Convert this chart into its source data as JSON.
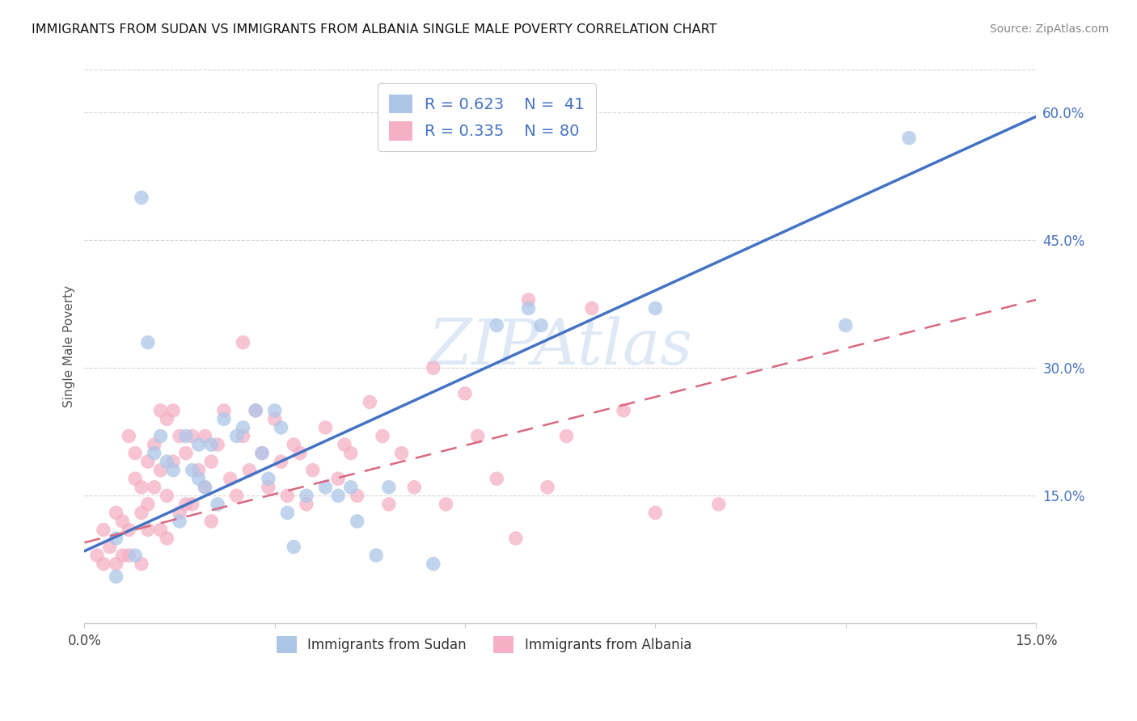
{
  "title": "IMMIGRANTS FROM SUDAN VS IMMIGRANTS FROM ALBANIA SINGLE MALE POVERTY CORRELATION CHART",
  "source": "Source: ZipAtlas.com",
  "ylabel": "Single Male Poverty",
  "xlim": [
    0.0,
    0.15
  ],
  "ylim": [
    0.0,
    0.65
  ],
  "ytick_values_right": [
    0.15,
    0.3,
    0.45,
    0.6
  ],
  "legend_sudan_R": "0.623",
  "legend_sudan_N": "41",
  "legend_albania_R": "0.335",
  "legend_albania_N": "80",
  "watermark": "ZIPAtlas",
  "color_sudan": "#adc6e8",
  "color_albania": "#f5b0c5",
  "color_line_sudan": "#4472c4",
  "color_line_albania": "#d9697f",
  "sudan_line_x": [
    0.0,
    0.15
  ],
  "sudan_line_y": [
    0.085,
    0.595
  ],
  "albania_line_x": [
    0.0,
    0.15
  ],
  "albania_line_y": [
    0.095,
    0.38
  ],
  "sudan_x": [
    0.005,
    0.008,
    0.009,
    0.01,
    0.011,
    0.012,
    0.013,
    0.014,
    0.015,
    0.016,
    0.017,
    0.018,
    0.018,
    0.019,
    0.02,
    0.021,
    0.022,
    0.024,
    0.025,
    0.027,
    0.028,
    0.029,
    0.03,
    0.031,
    0.032,
    0.033,
    0.035,
    0.038,
    0.04,
    0.042,
    0.043,
    0.046,
    0.048,
    0.055,
    0.065,
    0.07,
    0.072,
    0.09,
    0.12,
    0.13,
    0.005
  ],
  "sudan_y": [
    0.1,
    0.08,
    0.5,
    0.33,
    0.2,
    0.22,
    0.19,
    0.18,
    0.12,
    0.22,
    0.18,
    0.21,
    0.17,
    0.16,
    0.21,
    0.14,
    0.24,
    0.22,
    0.23,
    0.25,
    0.2,
    0.17,
    0.25,
    0.23,
    0.13,
    0.09,
    0.15,
    0.16,
    0.15,
    0.16,
    0.12,
    0.08,
    0.16,
    0.07,
    0.35,
    0.37,
    0.35,
    0.37,
    0.35,
    0.57,
    0.055
  ],
  "albania_x": [
    0.002,
    0.003,
    0.003,
    0.004,
    0.005,
    0.005,
    0.006,
    0.006,
    0.007,
    0.007,
    0.007,
    0.008,
    0.008,
    0.009,
    0.009,
    0.009,
    0.01,
    0.01,
    0.01,
    0.011,
    0.011,
    0.012,
    0.012,
    0.012,
    0.013,
    0.013,
    0.013,
    0.014,
    0.014,
    0.015,
    0.015,
    0.016,
    0.016,
    0.017,
    0.017,
    0.018,
    0.019,
    0.019,
    0.02,
    0.02,
    0.021,
    0.022,
    0.023,
    0.024,
    0.025,
    0.025,
    0.026,
    0.027,
    0.028,
    0.029,
    0.03,
    0.031,
    0.032,
    0.033,
    0.034,
    0.035,
    0.036,
    0.038,
    0.04,
    0.041,
    0.042,
    0.043,
    0.045,
    0.047,
    0.048,
    0.05,
    0.052,
    0.055,
    0.057,
    0.06,
    0.062,
    0.065,
    0.068,
    0.07,
    0.073,
    0.076,
    0.08,
    0.085,
    0.09,
    0.1
  ],
  "albania_y": [
    0.08,
    0.11,
    0.07,
    0.09,
    0.13,
    0.07,
    0.12,
    0.08,
    0.22,
    0.11,
    0.08,
    0.2,
    0.17,
    0.13,
    0.07,
    0.16,
    0.14,
    0.19,
    0.11,
    0.21,
    0.16,
    0.25,
    0.18,
    0.11,
    0.24,
    0.15,
    0.1,
    0.25,
    0.19,
    0.22,
    0.13,
    0.2,
    0.14,
    0.14,
    0.22,
    0.18,
    0.16,
    0.22,
    0.19,
    0.12,
    0.21,
    0.25,
    0.17,
    0.15,
    0.33,
    0.22,
    0.18,
    0.25,
    0.2,
    0.16,
    0.24,
    0.19,
    0.15,
    0.21,
    0.2,
    0.14,
    0.18,
    0.23,
    0.17,
    0.21,
    0.2,
    0.15,
    0.26,
    0.22,
    0.14,
    0.2,
    0.16,
    0.3,
    0.14,
    0.27,
    0.22,
    0.17,
    0.1,
    0.38,
    0.16,
    0.22,
    0.37,
    0.25,
    0.13,
    0.14
  ],
  "background_color": "#ffffff",
  "grid_color": "#cccccc"
}
